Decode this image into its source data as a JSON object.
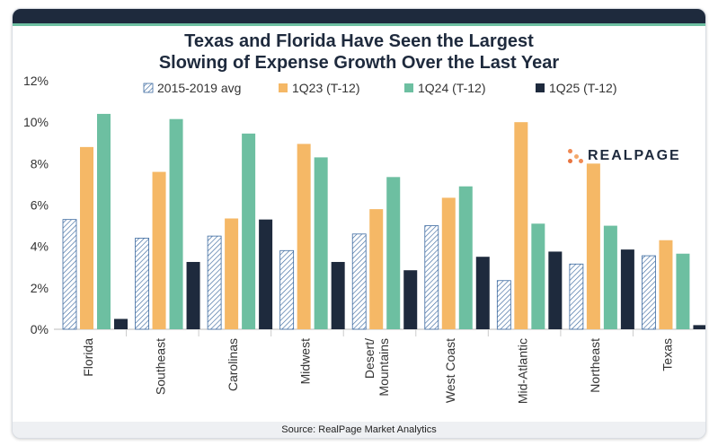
{
  "title_line1": "Texas and Florida Have Seen the Largest",
  "title_line2": "Slowing of Expense Growth Over the Last Year",
  "footer": "Source: RealPage Market Analytics",
  "logo": {
    "text": "REALPAGE",
    "icon": "realpage-dots-icon",
    "colors": [
      "#f08a54",
      "#f4a86a",
      "#e8743f"
    ]
  },
  "colors": {
    "hatch": "#3c6aa0",
    "s1": "#f5b866",
    "s2": "#6dbfa1",
    "s3": "#1e2a3d",
    "frame_top": "#1e2a3d"
  },
  "chart_data": {
    "type": "bar",
    "title": "Texas and Florida Have Seen the Largest Slowing of Expense Growth Over the Last Year",
    "categories": [
      "Florida",
      "Southeast",
      "Carolinas",
      "Midwest",
      "Desert/ Mountains",
      "West Coast",
      "Mid-Atlantic",
      "Northeast",
      "Texas"
    ],
    "series": [
      {
        "name": "2015-2019 avg",
        "values": [
          5.3,
          4.4,
          4.5,
          3.8,
          4.6,
          5.0,
          2.35,
          3.15,
          3.55
        ]
      },
      {
        "name": "1Q23 (T-12)",
        "values": [
          8.8,
          7.6,
          5.35,
          8.95,
          5.8,
          6.35,
          10.0,
          8.0,
          4.3
        ]
      },
      {
        "name": "1Q24 (T-12)",
        "values": [
          10.4,
          10.15,
          9.45,
          8.3,
          7.35,
          6.9,
          5.1,
          5.0,
          3.65
        ]
      },
      {
        "name": "1Q25 (T-12)",
        "values": [
          0.5,
          3.25,
          5.3,
          3.25,
          2.85,
          3.5,
          3.75,
          3.85,
          0.2
        ]
      }
    ],
    "ylim": [
      0,
      12
    ],
    "yticks": [
      "0%",
      "2%",
      "4%",
      "6%",
      "8%",
      "10%",
      "12%"
    ],
    "ytick_values": [
      0,
      2,
      4,
      6,
      8,
      10,
      12
    ],
    "legend_position": "top",
    "grid": false
  }
}
